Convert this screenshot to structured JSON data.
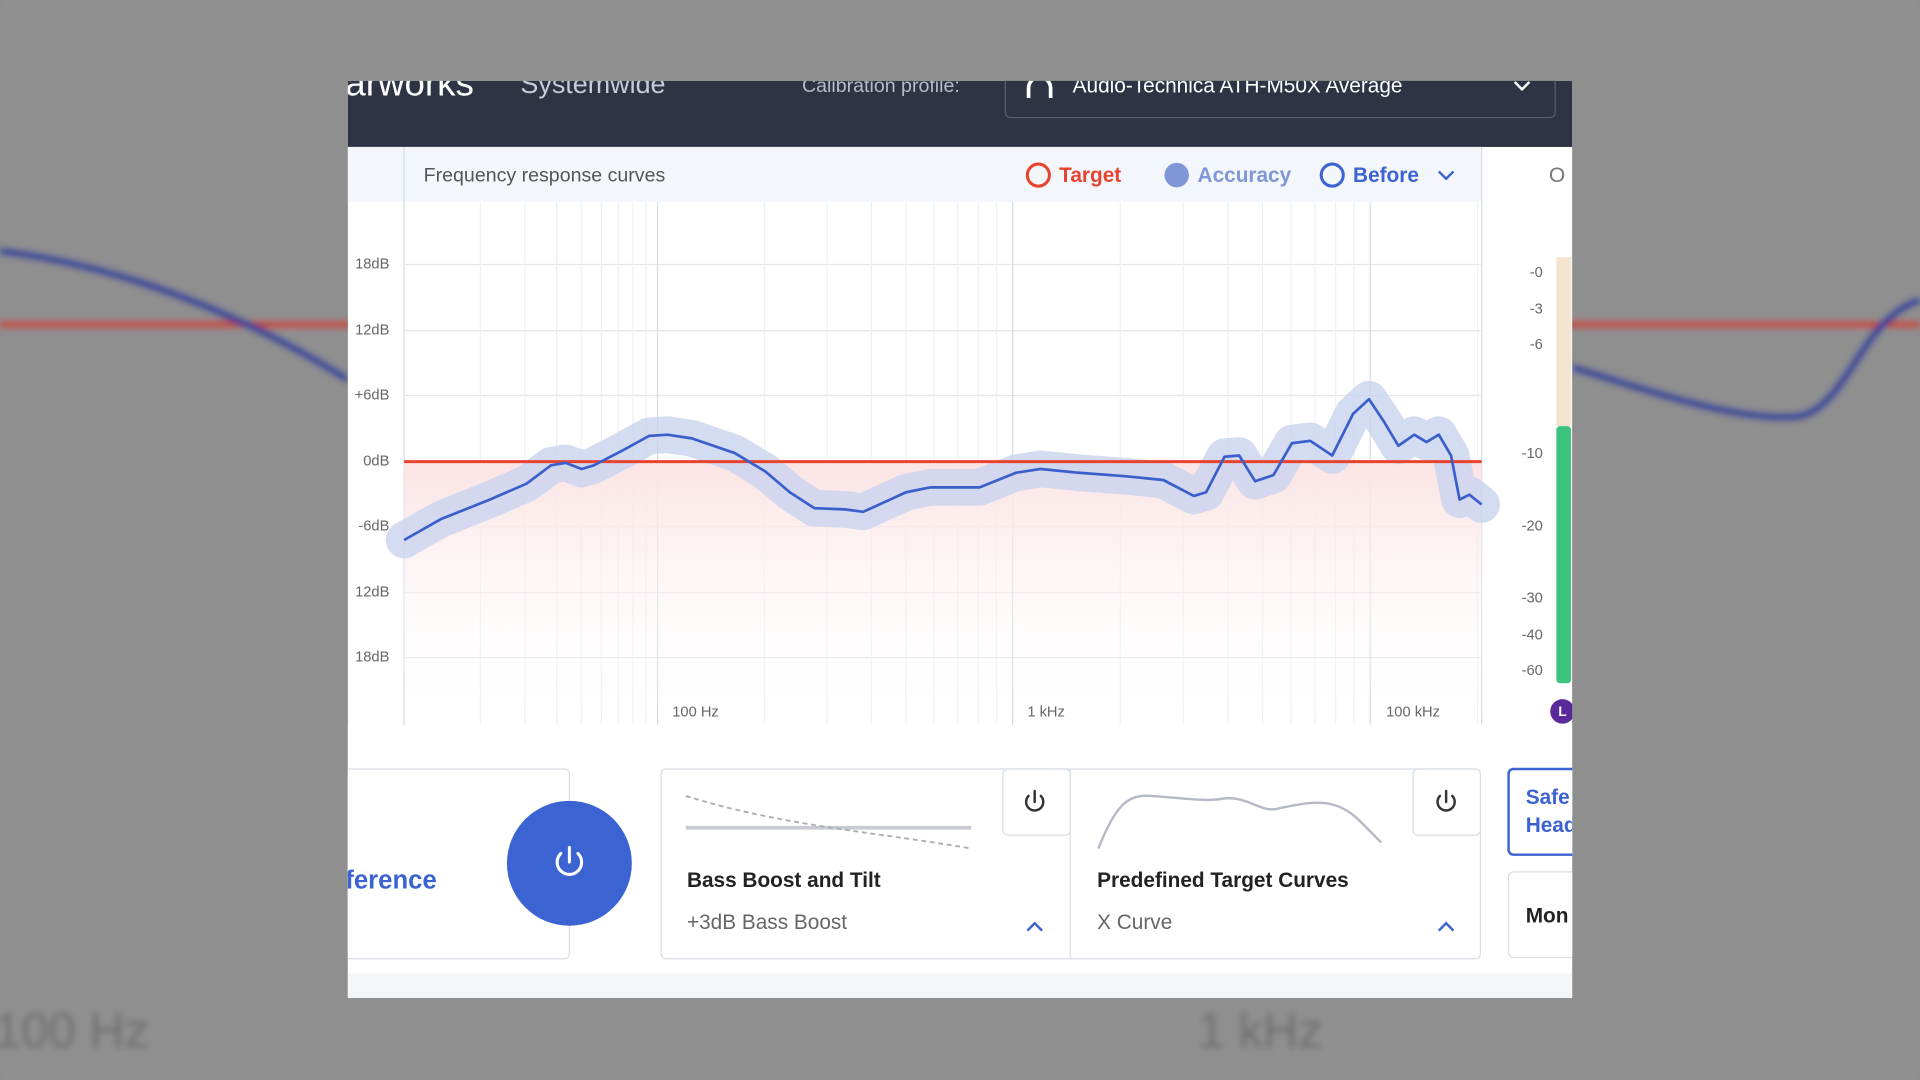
{
  "background": {
    "x_labels": [
      "100 Hz",
      "1 kHz"
    ]
  },
  "header": {
    "app_name": "arworks",
    "mode": "Systemwide",
    "profile_label": "Calibration profile:",
    "profile": "Audio-Technica ATH-M50X Average"
  },
  "chart_panel": {
    "title": "Frequency response curves",
    "legend": [
      "Target",
      "Accuracy",
      "Before"
    ],
    "side_tab": "O",
    "y_labels": [
      "18dB",
      "12dB",
      "+6dB",
      "0dB",
      "-6dB",
      "12dB",
      "18dB"
    ],
    "x_labels": [
      "100 Hz",
      "1 kHz",
      "100 kHz"
    ]
  },
  "meter": {
    "labels": [
      "-0",
      "-3",
      "-6",
      "-10",
      "-20",
      "-30",
      "-40",
      "-60"
    ],
    "channel": "L"
  },
  "cards": {
    "reference": "ference",
    "bass": {
      "title": "Bass Boost and Tilt",
      "value": "+3dB Bass Boost"
    },
    "target": {
      "title": "Predefined Target Curves",
      "value": "X Curve"
    },
    "safe": [
      "Safe",
      "Head"
    ],
    "mon": "Mon"
  }
}
